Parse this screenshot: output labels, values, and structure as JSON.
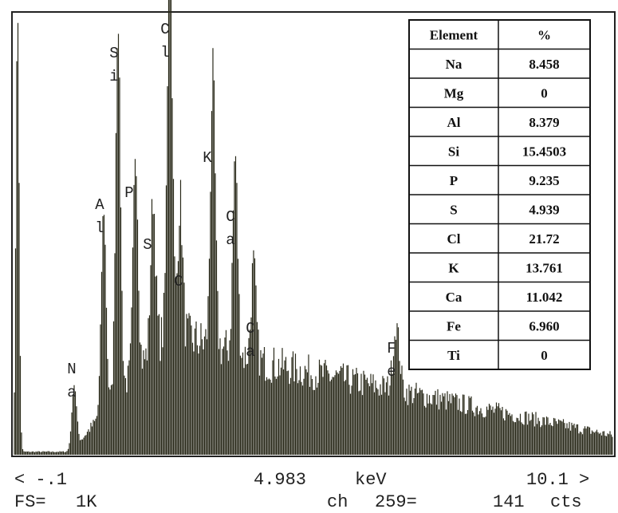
{
  "table": {
    "header": [
      "Element",
      "%"
    ],
    "rows": [
      [
        "Na",
        "8.458"
      ],
      [
        "Mg",
        "0"
      ],
      [
        "Al",
        "8.379"
      ],
      [
        "Si",
        "15.4503"
      ],
      [
        "P",
        "9.235"
      ],
      [
        "S",
        "4.939"
      ],
      [
        "Cl",
        "21.72"
      ],
      [
        "K",
        "13.761"
      ],
      [
        "Ca",
        "11.042"
      ],
      [
        "Fe",
        "6.960"
      ],
      [
        "Ti",
        "0"
      ]
    ]
  },
  "peak_labels": [
    {
      "lines": [
        "N",
        "a"
      ]
    },
    {
      "lines": [
        "A",
        "l"
      ]
    },
    {
      "lines": [
        "S",
        "i"
      ]
    },
    {
      "lines": [
        "P"
      ]
    },
    {
      "lines": [
        "S"
      ]
    },
    {
      "lines": [
        "C",
        "l"
      ]
    },
    {
      "lines": [
        "C"
      ]
    },
    {
      "lines": [
        "K"
      ]
    },
    {
      "lines": [
        "C",
        "a"
      ]
    },
    {
      "lines": [
        "C",
        "a"
      ]
    },
    {
      "lines": [
        "F",
        "e"
      ]
    }
  ],
  "footer": {
    "line1": [
      "< -.1",
      "4.983",
      "keV",
      "10.1 >"
    ],
    "line2": [
      "FS=",
      "1K",
      "ch",
      "259=",
      "141",
      "cts"
    ]
  }
}
